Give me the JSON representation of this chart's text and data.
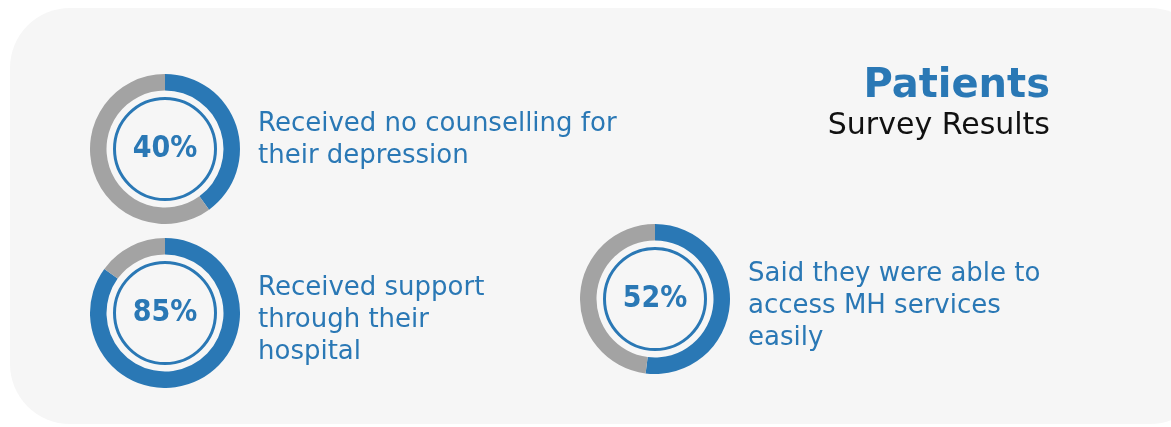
{
  "chart_data": [
    {
      "type": "donut",
      "title": "Received no counselling for their depression",
      "categories": [
        null,
        null
      ],
      "values": [
        40,
        60
      ],
      "colors": [
        "#2a78b5",
        "#a3a3a3"
      ],
      "value_labels": [
        "40%",
        null
      ]
    },
    {
      "type": "other",
      "title": "Patients",
      "subtitle": "Survey Results"
    },
    {
      "type": "donut",
      "title": "Received support through their hospital",
      "categories": [
        null,
        null
      ],
      "values": [
        85,
        15
      ],
      "colors": [
        "#2a78b5",
        "#a3a3a3"
      ],
      "value_labels": [
        "85%",
        null
      ]
    },
    {
      "type": "donut",
      "title": "Said they were able to access MH services easily",
      "categories": [
        null,
        null
      ],
      "values": [
        52,
        48
      ],
      "colors": [
        "#2a78b5",
        "#a3a3a3"
      ],
      "value_labels": [
        "52%",
        null
      ]
    }
  ]
}
